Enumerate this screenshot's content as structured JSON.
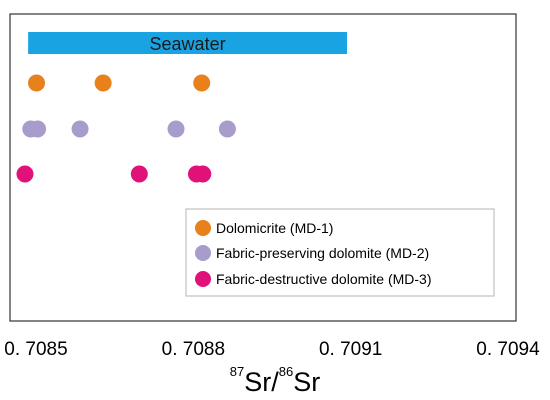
{
  "chart_data": {
    "type": "scatter",
    "xlabel": {
      "sup1": "87",
      "main1": "Sr/",
      "sup2": "86",
      "main2": "Sr"
    },
    "xlim": [
      0.70847,
      0.70945
    ],
    "x_ticks": [
      {
        "value": 0.7085,
        "label": "0. 7085"
      },
      {
        "value": 0.7088,
        "label": "0. 7088"
      },
      {
        "value": 0.7091,
        "label": "0. 7091"
      },
      {
        "value": 0.7094,
        "label": "0. 7094"
      }
    ],
    "seawater_band": {
      "label": "Seawater",
      "x_range": [
        0.708485,
        0.709093
      ],
      "color": "#1aa3e3"
    },
    "series": [
      {
        "name": "Dolomicrite (MD-1)",
        "color": "#e8801c",
        "x": [
          0.708501,
          0.708628,
          0.708816
        ]
      },
      {
        "name": "Fabric-preserving dolomite (MD-2)",
        "color": "#a79ccb",
        "x": [
          0.70849,
          0.708503,
          0.708584,
          0.708767,
          0.708865
        ]
      },
      {
        "name": "Fabric-destructive dolomite (MD-3)",
        "color": "#e0127a",
        "x": [
          0.708479,
          0.708697,
          0.708806,
          0.708818
        ]
      }
    ],
    "grid": false,
    "legend_position": "bottom-right"
  }
}
